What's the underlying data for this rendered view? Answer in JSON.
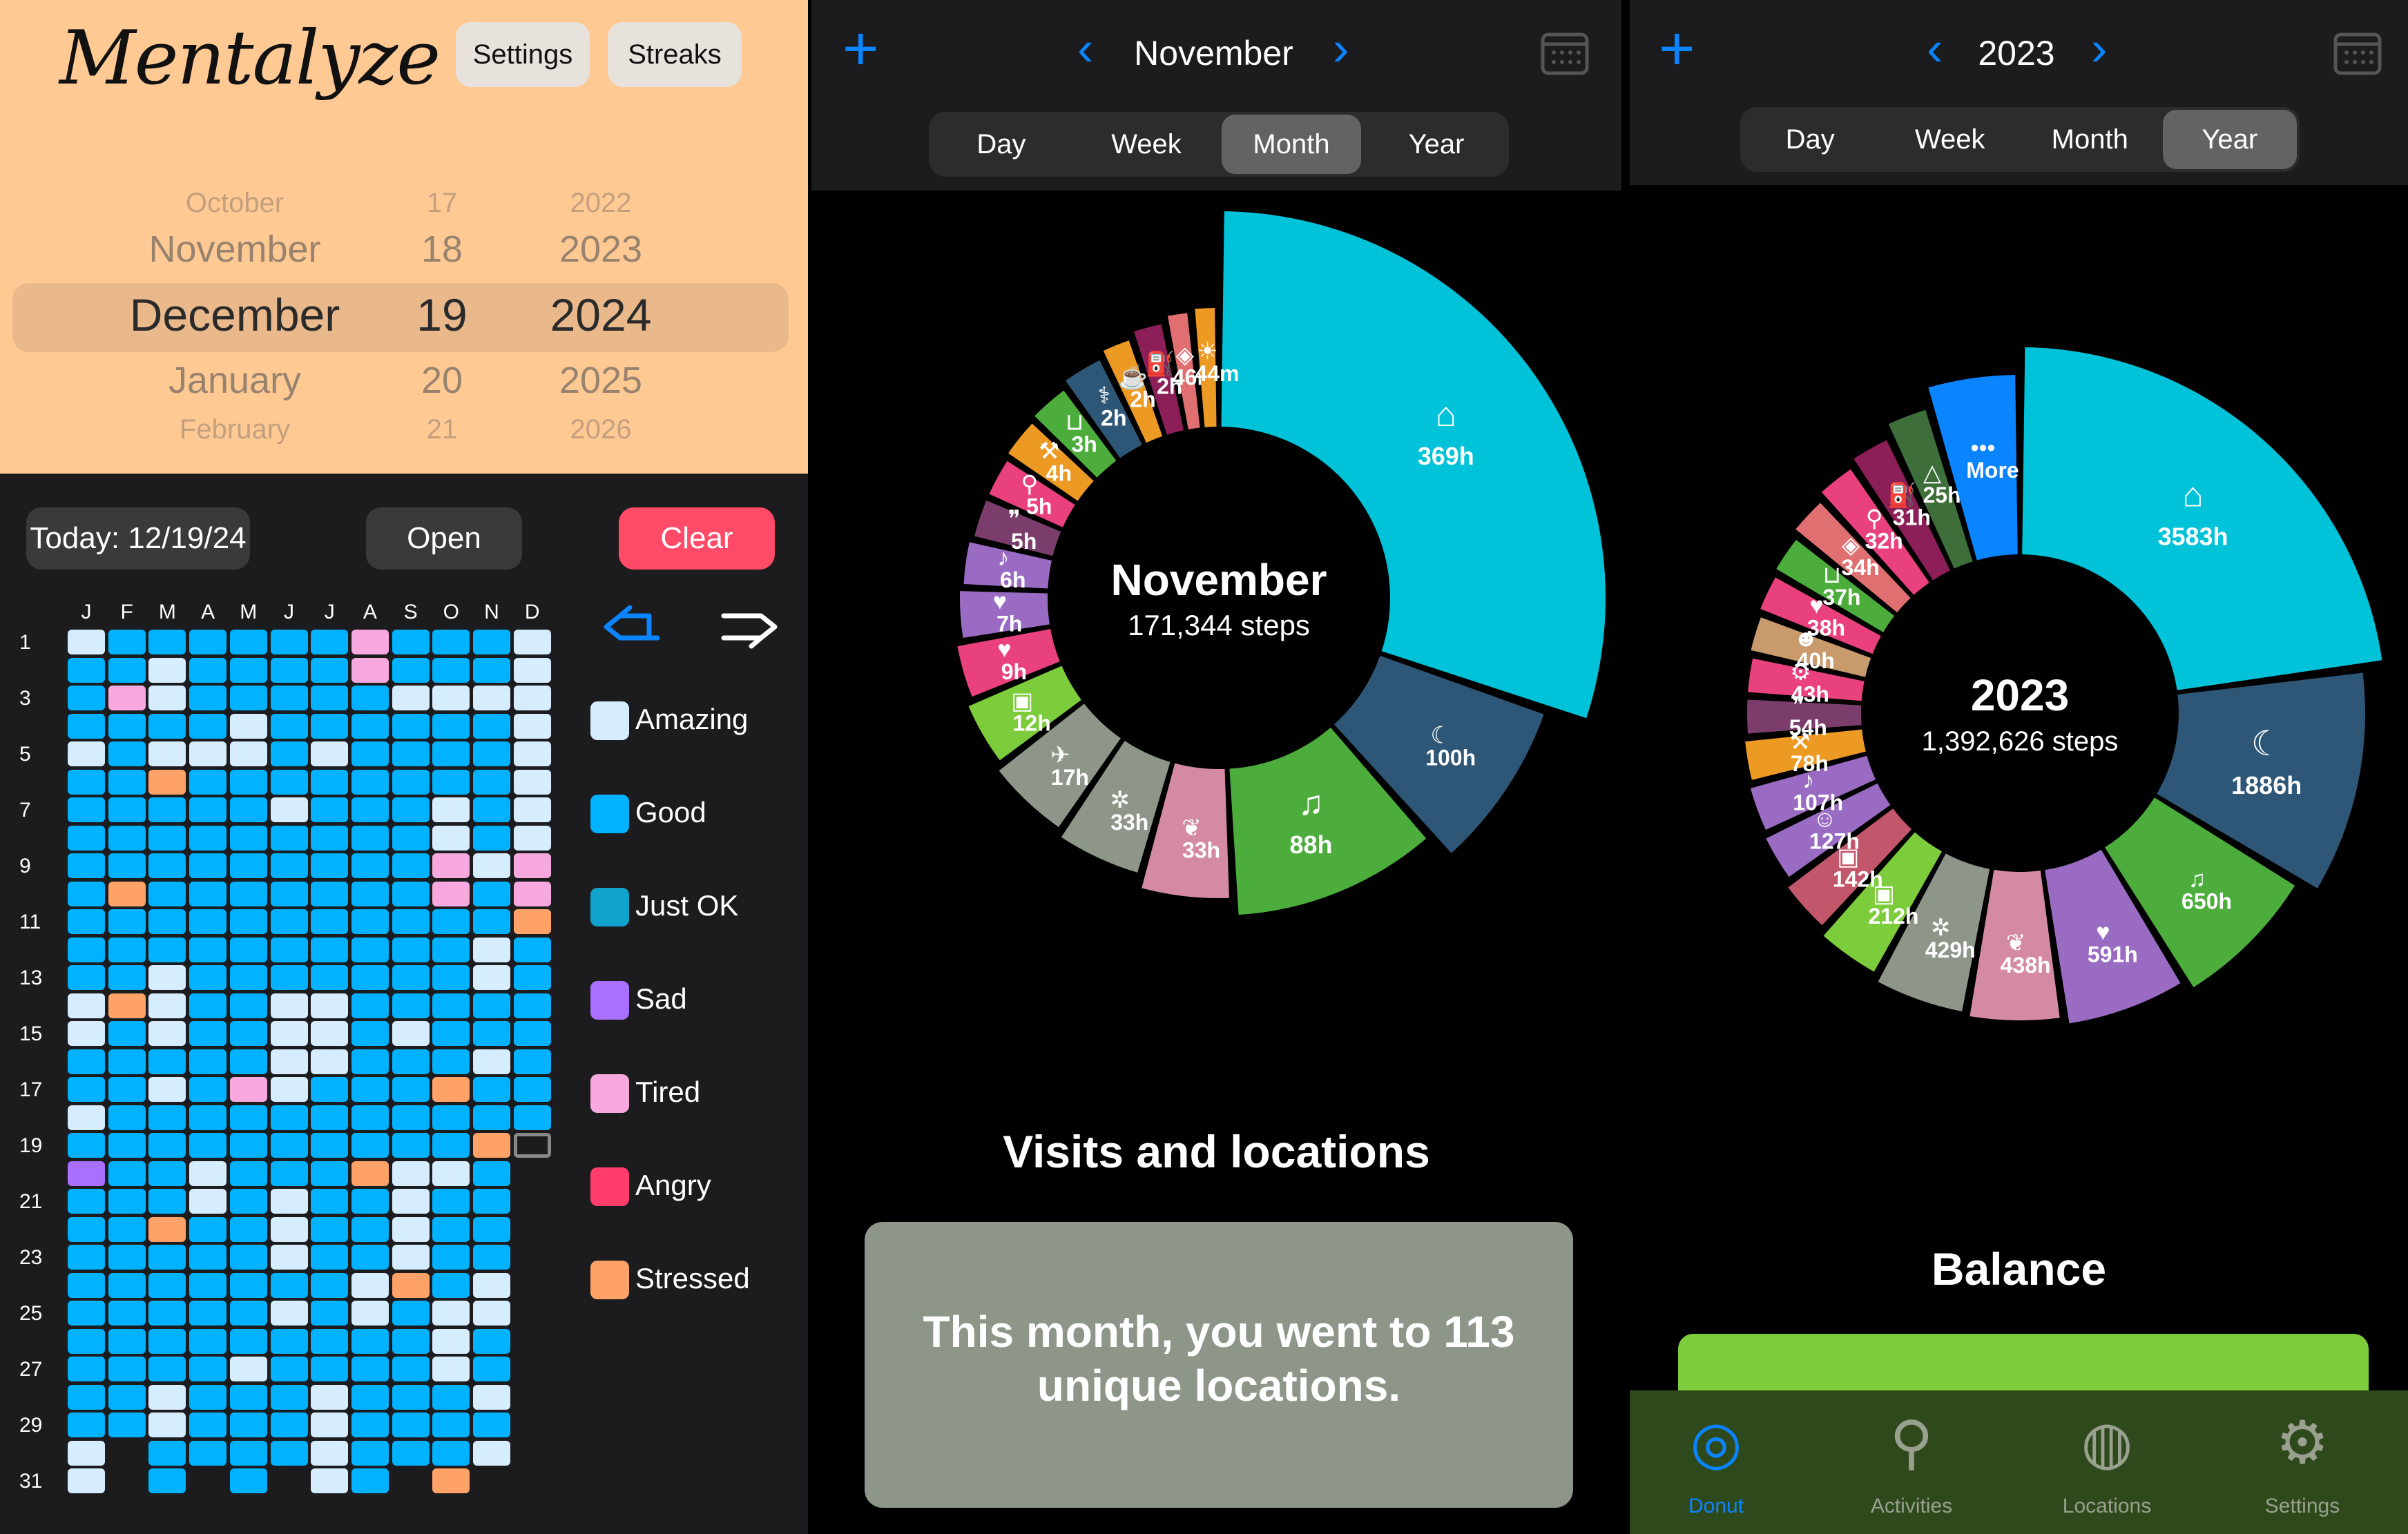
{
  "left": {
    "app_title": "Mentalyze",
    "settings_label": "Settings",
    "streaks_label": "Streaks",
    "picker": {
      "months": [
        "October",
        "November",
        "December",
        "January",
        "February"
      ],
      "days": [
        "17",
        "18",
        "19",
        "20",
        "21"
      ],
      "years": [
        "2022",
        "2023",
        "2024",
        "2025",
        "2026"
      ]
    },
    "today_label": "Today: 12/19/24",
    "open_label": "Open",
    "clear_label": "Clear",
    "month_initials": [
      "J",
      "F",
      "M",
      "A",
      "M",
      "J",
      "J",
      "A",
      "S",
      "O",
      "N",
      "D"
    ],
    "row_labels": [
      "1",
      "3",
      "5",
      "7",
      "9",
      "11",
      "13",
      "15",
      "17",
      "19",
      "21",
      "23",
      "25",
      "27",
      "29",
      "31"
    ],
    "legend": [
      {
        "label": "Amazing",
        "color": "#d6ecff"
      },
      {
        "label": "Good",
        "color": "#00b2ff"
      },
      {
        "label": "Just OK",
        "color": "#0fa3cc"
      },
      {
        "label": "Sad",
        "color": "#a970ff"
      },
      {
        "label": "Tired",
        "color": "#f7a8de"
      },
      {
        "label": "Angry",
        "color": "#ff3c6a"
      },
      {
        "label": "Stressed",
        "color": "#ffa268"
      }
    ]
  },
  "middle": {
    "nav_title": "November",
    "tabs": [
      "Day",
      "Week",
      "Month",
      "Year"
    ],
    "active_tab": "Month",
    "center_title": "November",
    "center_subtitle": "171,344 steps",
    "segments": [
      {
        "value": "369h",
        "icon": "house-icon",
        "color": "#00c2d8"
      },
      {
        "value": "100h",
        "icon": "moon-icon",
        "color": "#2e5777"
      },
      {
        "value": "88h",
        "icon": "dance-icon",
        "color": "#4cad3c"
      },
      {
        "value": "33h",
        "icon": "cheers-icon",
        "color": "#d58aa3"
      },
      {
        "value": "33h",
        "icon": "wheel-icon",
        "color": "#8e9689"
      },
      {
        "value": "17h",
        "icon": "plane-icon",
        "color": "#8e9689"
      },
      {
        "value": "12h",
        "icon": "briefcase-icon",
        "color": "#7ccc3c"
      },
      {
        "value": "9h",
        "icon": "heart-icon",
        "color": "#e8417e"
      },
      {
        "value": "7h",
        "icon": "heart-icon",
        "color": "#9a6bc2"
      },
      {
        "value": "6h",
        "icon": "music-icon",
        "color": "#9a6bc2"
      },
      {
        "value": "5h",
        "icon": "footprints-icon",
        "color": "#7a3d6c"
      },
      {
        "value": "5h",
        "icon": "walk-icon",
        "color": "#e8417e"
      },
      {
        "value": "4h",
        "icon": "dumbbell-icon",
        "color": "#ed9a24"
      },
      {
        "value": "3h",
        "icon": "basket-icon",
        "color": "#4cad3c"
      },
      {
        "value": "2h",
        "icon": "stethoscope-icon",
        "color": "#2e5777"
      },
      {
        "value": "2h",
        "icon": "coffee-icon",
        "color": "#ed9a24"
      },
      {
        "value": "2h",
        "icon": "fuel-icon",
        "color": "#8c1f57"
      },
      {
        "value": "46m",
        "icon": "bag-icon",
        "color": "#e06f71"
      },
      {
        "value": "44m",
        "icon": "sun-icon",
        "color": "#ed9a24"
      }
    ],
    "section_title": "Visits and locations",
    "visits_text": "This month, you went to 113 unique locations."
  },
  "right": {
    "nav_title": "2023",
    "tabs": [
      "Day",
      "Week",
      "Month",
      "Year"
    ],
    "active_tab": "Year",
    "center_title": "2023",
    "center_subtitle": "1,392,626 steps",
    "segments": [
      {
        "value": "3583h",
        "icon": "house-icon",
        "color": "#00c2d8"
      },
      {
        "value": "1886h",
        "icon": "moon-icon",
        "color": "#2e5777"
      },
      {
        "value": "650h",
        "icon": "dance-icon",
        "color": "#4cad3c"
      },
      {
        "value": "591h",
        "icon": "heart-icon",
        "color": "#9a6bc2"
      },
      {
        "value": "438h",
        "icon": "cheers-icon",
        "color": "#d58aa3"
      },
      {
        "value": "429h",
        "icon": "wheel-icon",
        "color": "#8e9689"
      },
      {
        "value": "212h",
        "icon": "briefcase-icon",
        "color": "#7ccc3c"
      },
      {
        "value": "142h",
        "icon": "briefcase-icon",
        "color": "#c2566a"
      },
      {
        "value": "127h",
        "icon": "family-icon",
        "color": "#9a6bc2"
      },
      {
        "value": "107h",
        "icon": "music-icon",
        "color": "#9a6bc2"
      },
      {
        "value": "78h",
        "icon": "dumbbell-icon",
        "color": "#ed9a24"
      },
      {
        "value": "54h",
        "icon": "footprints-icon",
        "color": "#7a3d6c"
      },
      {
        "value": "43h",
        "icon": "bike-icon",
        "color": "#e8417e"
      },
      {
        "value": "40h",
        "icon": "group-icon",
        "color": "#c89a6c"
      },
      {
        "value": "38h",
        "icon": "heart-icon",
        "color": "#e8417e"
      },
      {
        "value": "37h",
        "icon": "basket-icon",
        "color": "#4cad3c"
      },
      {
        "value": "34h",
        "icon": "bag-icon",
        "color": "#e06f71"
      },
      {
        "value": "32h",
        "icon": "walk-icon",
        "color": "#e8417e"
      },
      {
        "value": "31h",
        "icon": "fuel-icon",
        "color": "#8c1f57"
      },
      {
        "value": "25h",
        "icon": "pizza-icon",
        "color": "#3e6e3a"
      },
      {
        "value": "More",
        "icon": "more-icon",
        "color": "#0a84ff"
      }
    ],
    "section_title": "Balance",
    "tabbar": [
      {
        "label": "Donut",
        "icon": "donut-icon",
        "active": true
      },
      {
        "label": "Activities",
        "icon": "walk-icon",
        "active": false
      },
      {
        "label": "Locations",
        "icon": "globe-icon",
        "active": false
      },
      {
        "label": "Settings",
        "icon": "gear-icon",
        "active": false
      }
    ]
  }
}
